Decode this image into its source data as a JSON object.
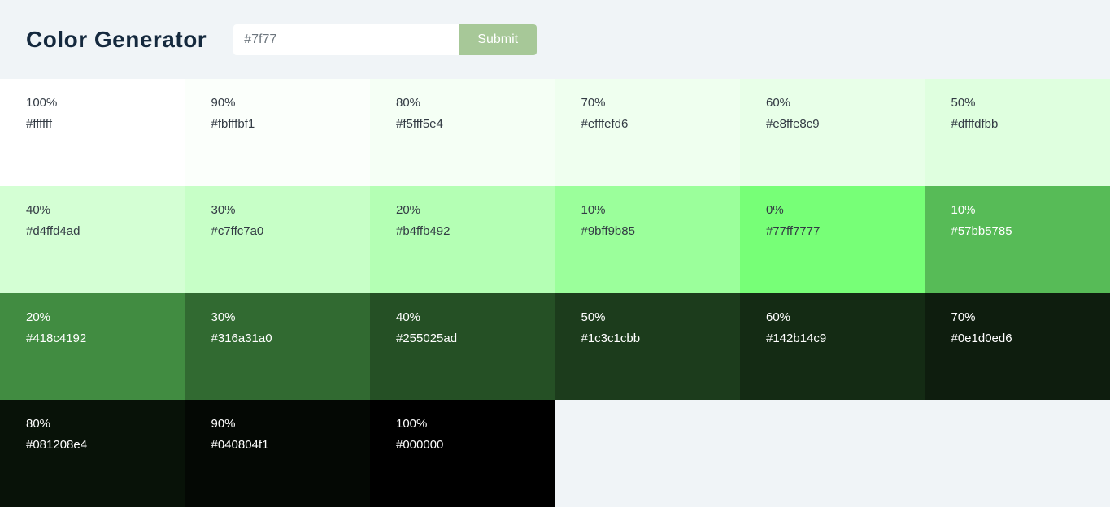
{
  "header": {
    "title": "Color Generator",
    "input": {
      "value": "#7f77"
    },
    "submit_label": "Submit"
  },
  "theme": {
    "page_bg": "#f0f4f7",
    "title_color": "#15293e",
    "dark_text": "#333b44",
    "light_text": "#ffffff",
    "button_bg": "#a7c898",
    "button_text": "#ffffff",
    "input_bg": "#ffffff",
    "input_text": "#6c757d"
  },
  "swatches": [
    {
      "percent": "100%",
      "hex": "#ffffff",
      "bg": "#ffffff",
      "text": "dark"
    },
    {
      "percent": "90%",
      "hex": "#fbfffbf1",
      "bg": "#fbfffb",
      "text": "dark"
    },
    {
      "percent": "80%",
      "hex": "#f5fff5e4",
      "bg": "#f5fff5",
      "text": "dark"
    },
    {
      "percent": "70%",
      "hex": "#efffefd6",
      "bg": "#efffef",
      "text": "dark"
    },
    {
      "percent": "60%",
      "hex": "#e8ffe8c9",
      "bg": "#e8ffe8",
      "text": "dark"
    },
    {
      "percent": "50%",
      "hex": "#dfffdfbb",
      "bg": "#dfffdf",
      "text": "dark"
    },
    {
      "percent": "40%",
      "hex": "#d4ffd4ad",
      "bg": "#d4ffd4",
      "text": "dark"
    },
    {
      "percent": "30%",
      "hex": "#c7ffc7a0",
      "bg": "#c7ffc7",
      "text": "dark"
    },
    {
      "percent": "20%",
      "hex": "#b4ffb492",
      "bg": "#b4ffb4",
      "text": "dark"
    },
    {
      "percent": "10%",
      "hex": "#9bff9b85",
      "bg": "#9bff9b",
      "text": "dark"
    },
    {
      "percent": "0%",
      "hex": "#77ff7777",
      "bg": "#77ff77",
      "text": "dark"
    },
    {
      "percent": "10%",
      "hex": "#57bb5785",
      "bg": "#57bb57",
      "text": "light"
    },
    {
      "percent": "20%",
      "hex": "#418c4192",
      "bg": "#418c41",
      "text": "light"
    },
    {
      "percent": "30%",
      "hex": "#316a31a0",
      "bg": "#316a31",
      "text": "light"
    },
    {
      "percent": "40%",
      "hex": "#255025ad",
      "bg": "#255025",
      "text": "light"
    },
    {
      "percent": "50%",
      "hex": "#1c3c1cbb",
      "bg": "#1c3c1c",
      "text": "light"
    },
    {
      "percent": "60%",
      "hex": "#142b14c9",
      "bg": "#142b14",
      "text": "light"
    },
    {
      "percent": "70%",
      "hex": "#0e1d0ed6",
      "bg": "#0e1d0e",
      "text": "light"
    },
    {
      "percent": "80%",
      "hex": "#081208e4",
      "bg": "#081208",
      "text": "light"
    },
    {
      "percent": "90%",
      "hex": "#040804f1",
      "bg": "#040804",
      "text": "light"
    },
    {
      "percent": "100%",
      "hex": "#000000",
      "bg": "#000000",
      "text": "light"
    }
  ]
}
